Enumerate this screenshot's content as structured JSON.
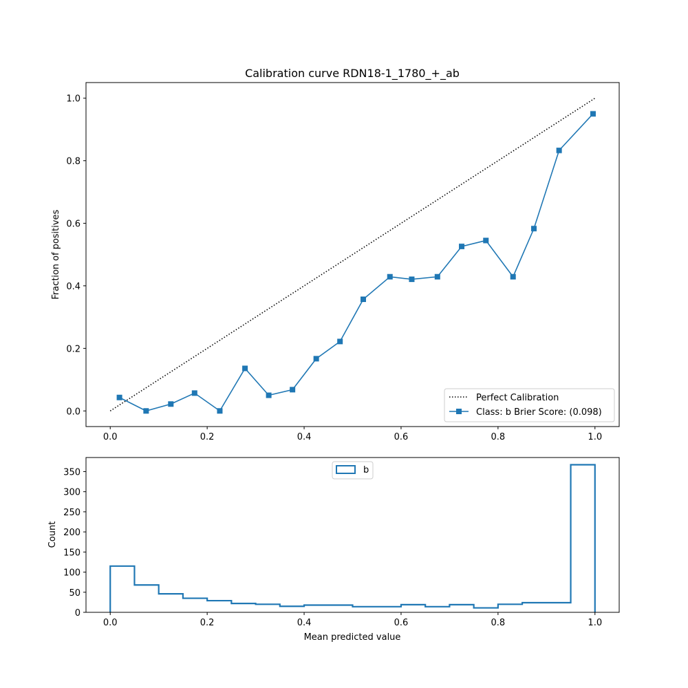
{
  "chart_data": [
    {
      "type": "line",
      "title": "Calibration curve RDN18-1_1780_+_ab",
      "xlabel": "",
      "ylabel": "Fraction of positives",
      "xlim": [
        -0.05,
        1.05
      ],
      "ylim": [
        -0.05,
        1.05
      ],
      "x_ticks": [
        0.0,
        0.2,
        0.4,
        0.6,
        0.8,
        1.0
      ],
      "x_tick_labels": [
        "0.0",
        "0.2",
        "0.4",
        "0.6",
        "0.8",
        "1.0"
      ],
      "y_ticks": [
        0.0,
        0.2,
        0.4,
        0.6,
        0.8,
        1.0
      ],
      "y_tick_labels": [
        "0.0",
        "0.2",
        "0.4",
        "0.6",
        "0.8",
        "1.0"
      ],
      "grid": false,
      "legend_position": "lower-right",
      "series": [
        {
          "name": "Perfect Calibration",
          "style": "dotted",
          "color": "#000000",
          "x": [
            0,
            1
          ],
          "y": [
            0,
            1
          ]
        },
        {
          "name": "Class: b Brier Score: (0.098)",
          "style": "solid",
          "marker": "square",
          "color": "#1f77b4",
          "x": [
            0.019,
            0.074,
            0.125,
            0.174,
            0.226,
            0.278,
            0.327,
            0.376,
            0.425,
            0.474,
            0.522,
            0.577,
            0.622,
            0.675,
            0.725,
            0.775,
            0.831,
            0.874,
            0.926,
            0.996
          ],
          "y": [
            0.043,
            0.0,
            0.022,
            0.057,
            0.0,
            0.136,
            0.05,
            0.068,
            0.167,
            0.222,
            0.357,
            0.429,
            0.421,
            0.429,
            0.526,
            0.545,
            0.429,
            0.583,
            0.833,
            0.95
          ]
        }
      ]
    },
    {
      "type": "histogram",
      "title": "",
      "xlabel": "Mean predicted value",
      "ylabel": "Count",
      "xlim": [
        -0.05,
        1.05
      ],
      "ylim": [
        0,
        385
      ],
      "x_ticks": [
        0.0,
        0.2,
        0.4,
        0.6,
        0.8,
        1.0
      ],
      "x_tick_labels": [
        "0.0",
        "0.2",
        "0.4",
        "0.6",
        "0.8",
        "1.0"
      ],
      "y_ticks": [
        0,
        50,
        100,
        150,
        200,
        250,
        300,
        350
      ],
      "y_tick_labels": [
        "0",
        "50",
        "100",
        "150",
        "200",
        "250",
        "300",
        "350"
      ],
      "legend_position": "top-center",
      "series": [
        {
          "name": "b",
          "color": "#1f77b4",
          "bin_edges": [
            0.0,
            0.05,
            0.1,
            0.15,
            0.2,
            0.25,
            0.3,
            0.35,
            0.4,
            0.45,
            0.5,
            0.55,
            0.6,
            0.65,
            0.7,
            0.75,
            0.8,
            0.85,
            0.9,
            0.95,
            1.0
          ],
          "counts": [
            115,
            68,
            46,
            35,
            29,
            22,
            20,
            15,
            18,
            18,
            14,
            14,
            19,
            14,
            19,
            11,
            20,
            24,
            24,
            367
          ]
        }
      ]
    }
  ]
}
